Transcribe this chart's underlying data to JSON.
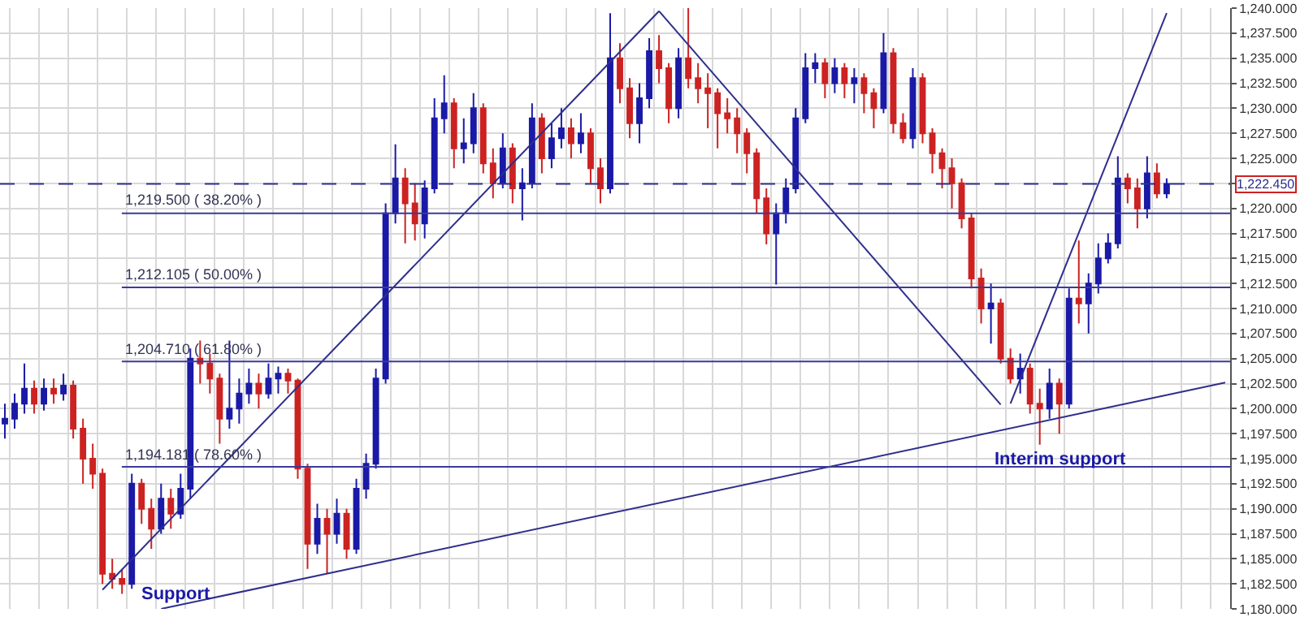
{
  "chart_data": {
    "type": "candlestick",
    "categories": [
      null,
      null,
      null,
      null,
      null,
      null,
      null,
      null,
      null,
      null,
      null,
      null,
      null,
      null,
      null,
      null,
      null,
      null,
      null,
      null,
      null,
      null,
      null,
      null,
      null,
      null,
      null,
      null,
      null,
      null,
      null,
      null,
      null,
      null,
      null,
      null,
      null,
      null,
      null,
      null,
      null,
      null,
      null,
      null,
      null,
      null,
      null,
      null,
      null,
      null,
      null,
      null,
      null,
      null,
      null,
      null,
      null,
      null,
      null,
      null,
      null,
      null,
      null,
      null,
      null,
      null,
      null,
      null,
      null,
      null,
      null,
      null,
      null,
      null,
      null,
      null,
      null,
      null,
      null,
      null,
      null,
      null,
      null,
      null,
      null,
      null,
      null,
      null,
      null,
      null,
      null,
      null,
      null,
      null,
      null,
      null,
      null,
      null,
      null,
      null,
      null,
      null,
      null,
      null,
      null,
      null,
      null,
      null,
      null,
      null,
      null,
      null,
      null,
      null,
      null,
      null,
      null,
      null,
      null,
      null,
      null,
      null,
      null,
      null,
      null,
      null
    ],
    "ohlc": [
      [
        1198.5,
        1200.5,
        1197.0,
        1199.0
      ],
      [
        1199.0,
        1201.5,
        1198.0,
        1200.5
      ],
      [
        1200.5,
        1204.5,
        1199.5,
        1202.0
      ],
      [
        1202.0,
        1202.8,
        1199.5,
        1200.5
      ],
      [
        1200.5,
        1203.0,
        1199.8,
        1202.0
      ],
      [
        1202.0,
        1203.0,
        1200.5,
        1201.5
      ],
      [
        1201.5,
        1203.5,
        1200.8,
        1202.3
      ],
      [
        1202.3,
        1202.8,
        1197.0,
        1198.0
      ],
      [
        1198.0,
        1199.0,
        1192.5,
        1195.0
      ],
      [
        1195.0,
        1196.5,
        1192.0,
        1193.5
      ],
      [
        1193.5,
        1194.0,
        1182.5,
        1183.5
      ],
      [
        1183.5,
        1185.0,
        1182.0,
        1183.0
      ],
      [
        1183.0,
        1184.0,
        1181.5,
        1182.5
      ],
      [
        1182.5,
        1193.5,
        1182.0,
        1192.5
      ],
      [
        1192.5,
        1193.0,
        1188.5,
        1190.0
      ],
      [
        1190.0,
        1191.0,
        1186.0,
        1188.0
      ],
      [
        1188.0,
        1192.5,
        1187.5,
        1191.0
      ],
      [
        1191.0,
        1192.0,
        1188.0,
        1189.5
      ],
      [
        1189.5,
        1193.5,
        1189.0,
        1192.0
      ],
      [
        1192.0,
        1206.0,
        1191.0,
        1205.0
      ],
      [
        1205.0,
        1206.8,
        1202.5,
        1204.5
      ],
      [
        1204.5,
        1205.5,
        1201.5,
        1203.0
      ],
      [
        1203.0,
        1203.5,
        1196.5,
        1199.0
      ],
      [
        1199.0,
        1206.8,
        1198.0,
        1200.0
      ],
      [
        1200.0,
        1203.0,
        1198.5,
        1201.5
      ],
      [
        1201.5,
        1204.0,
        1200.5,
        1202.5
      ],
      [
        1202.5,
        1203.5,
        1200.0,
        1201.5
      ],
      [
        1201.5,
        1204.5,
        1201.0,
        1203.0
      ],
      [
        1203.0,
        1204.2,
        1201.5,
        1203.5
      ],
      [
        1203.5,
        1204.0,
        1201.5,
        1202.8
      ],
      [
        1202.8,
        1203.0,
        1193.0,
        1194.0
      ],
      [
        1194.0,
        1194.5,
        1184.0,
        1186.5
      ],
      [
        1186.5,
        1190.5,
        1185.5,
        1189.0
      ],
      [
        1189.0,
        1190.0,
        1183.5,
        1187.5
      ],
      [
        1187.5,
        1191.0,
        1186.5,
        1189.5
      ],
      [
        1189.5,
        1190.0,
        1185.0,
        1186.0
      ],
      [
        1186.0,
        1193.0,
        1185.5,
        1192.0
      ],
      [
        1192.0,
        1195.5,
        1191.0,
        1194.5
      ],
      [
        1194.5,
        1204.0,
        1194.0,
        1203.0
      ],
      [
        1203.0,
        1220.5,
        1202.5,
        1219.5
      ],
      [
        1219.5,
        1226.4,
        1218.5,
        1223.0
      ],
      [
        1223.0,
        1224.0,
        1216.5,
        1220.5
      ],
      [
        1220.5,
        1222.5,
        1216.8,
        1218.5
      ],
      [
        1218.5,
        1222.8,
        1217.0,
        1222.0
      ],
      [
        1222.0,
        1231.0,
        1221.5,
        1229.0
      ],
      [
        1229.0,
        1233.3,
        1227.5,
        1230.5
      ],
      [
        1230.5,
        1231.0,
        1224.0,
        1226.0
      ],
      [
        1226.0,
        1229.0,
        1224.5,
        1226.5
      ],
      [
        1226.5,
        1231.5,
        1225.5,
        1230.0
      ],
      [
        1230.0,
        1230.5,
        1223.5,
        1224.5
      ],
      [
        1224.5,
        1226.0,
        1221.0,
        1222.5
      ],
      [
        1222.5,
        1227.5,
        1222.0,
        1226.0
      ],
      [
        1226.0,
        1226.5,
        1220.5,
        1222.0
      ],
      [
        1222.0,
        1224.0,
        1218.8,
        1222.5
      ],
      [
        1222.5,
        1230.5,
        1222.0,
        1229.0
      ],
      [
        1229.0,
        1229.5,
        1223.5,
        1225.0
      ],
      [
        1225.0,
        1228.5,
        1224.0,
        1227.0
      ],
      [
        1227.0,
        1230.0,
        1226.0,
        1228.0
      ],
      [
        1228.0,
        1229.0,
        1225.0,
        1226.5
      ],
      [
        1226.5,
        1229.5,
        1225.5,
        1227.5
      ],
      [
        1227.5,
        1228.0,
        1222.5,
        1224.0
      ],
      [
        1224.0,
        1225.0,
        1220.5,
        1222.0
      ],
      [
        1222.0,
        1239.5,
        1221.5,
        1235.0
      ],
      [
        1235.0,
        1236.5,
        1230.5,
        1232.0
      ],
      [
        1232.0,
        1233.0,
        1227.0,
        1228.5
      ],
      [
        1228.5,
        1232.5,
        1226.5,
        1231.0
      ],
      [
        1231.0,
        1237.0,
        1230.0,
        1235.7
      ],
      [
        1235.7,
        1237.3,
        1232.5,
        1234.0
      ],
      [
        1234.0,
        1234.5,
        1228.5,
        1230.0
      ],
      [
        1230.0,
        1236.0,
        1229.0,
        1235.0
      ],
      [
        1235.0,
        1240.0,
        1232.0,
        1233.0
      ],
      [
        1233.0,
        1234.5,
        1230.5,
        1232.0
      ],
      [
        1232.0,
        1233.5,
        1228.0,
        1231.5
      ],
      [
        1231.5,
        1232.0,
        1226.0,
        1229.5
      ],
      [
        1229.5,
        1231.0,
        1227.5,
        1229.0
      ],
      [
        1229.0,
        1230.0,
        1225.5,
        1227.5
      ],
      [
        1227.5,
        1228.0,
        1223.5,
        1225.5
      ],
      [
        1225.5,
        1226.0,
        1219.5,
        1221.0
      ],
      [
        1221.0,
        1222.0,
        1216.4,
        1217.5
      ],
      [
        1217.5,
        1220.5,
        1212.4,
        1219.5
      ],
      [
        1219.5,
        1223.0,
        1218.5,
        1222.0
      ],
      [
        1222.0,
        1230.0,
        1221.5,
        1229.0
      ],
      [
        1229.0,
        1235.5,
        1228.5,
        1234.0
      ],
      [
        1234.0,
        1235.5,
        1232.5,
        1234.5
      ],
      [
        1234.5,
        1235.0,
        1231.0,
        1232.5
      ],
      [
        1232.5,
        1235.0,
        1231.5,
        1234.0
      ],
      [
        1234.0,
        1234.5,
        1231.0,
        1232.5
      ],
      [
        1232.5,
        1234.0,
        1230.5,
        1233.0
      ],
      [
        1233.0,
        1233.5,
        1229.5,
        1231.5
      ],
      [
        1231.5,
        1232.0,
        1228.0,
        1230.0
      ],
      [
        1230.0,
        1237.5,
        1229.5,
        1235.5
      ],
      [
        1235.5,
        1236.0,
        1227.5,
        1228.5
      ],
      [
        1228.5,
        1229.5,
        1226.5,
        1227.0
      ],
      [
        1227.0,
        1234.0,
        1226.0,
        1233.0
      ],
      [
        1233.0,
        1233.5,
        1226.5,
        1227.5
      ],
      [
        1227.5,
        1228.0,
        1223.5,
        1225.5
      ],
      [
        1225.5,
        1226.0,
        1222.0,
        1224.0
      ],
      [
        1224.0,
        1225.0,
        1220.0,
        1222.5
      ],
      [
        1222.5,
        1223.0,
        1218.0,
        1219.0
      ],
      [
        1219.0,
        1219.5,
        1212.0,
        1213.0
      ],
      [
        1213.0,
        1214.0,
        1208.5,
        1210.0
      ],
      [
        1210.0,
        1212.5,
        1206.5,
        1210.5
      ],
      [
        1210.5,
        1211.0,
        1204.5,
        1205.0
      ],
      [
        1205.0,
        1206.0,
        1202.5,
        1203.0
      ],
      [
        1203.0,
        1205.5,
        1201.5,
        1204.0
      ],
      [
        1204.0,
        1204.5,
        1199.5,
        1200.5
      ],
      [
        1200.5,
        1202.0,
        1196.4,
        1200.0
      ],
      [
        1200.0,
        1204.0,
        1199.0,
        1202.5
      ],
      [
        1202.5,
        1203.0,
        1197.5,
        1200.5
      ],
      [
        1200.5,
        1212.0,
        1200.0,
        1211.0
      ],
      [
        1211.0,
        1216.8,
        1208.5,
        1210.5
      ],
      [
        1210.5,
        1213.5,
        1207.5,
        1212.5
      ],
      [
        1212.5,
        1216.5,
        1211.5,
        1215.0
      ],
      [
        1215.0,
        1217.5,
        1214.5,
        1216.5
      ],
      [
        1216.5,
        1225.2,
        1216.0,
        1223.0
      ],
      [
        1223.0,
        1223.5,
        1220.5,
        1222.0
      ],
      [
        1222.0,
        1223.0,
        1218.0,
        1220.0
      ],
      [
        1220.0,
        1225.2,
        1219.0,
        1223.5
      ],
      [
        1223.5,
        1224.5,
        1221.0,
        1221.5
      ],
      [
        1221.5,
        1223.0,
        1221.0,
        1222.45
      ],
      null,
      null,
      null,
      null,
      null,
      null
    ],
    "colors": [
      "#1a1aa6",
      "#1a1aa6",
      "#1a1aa6",
      "#cc2222",
      "#1a1aa6",
      "#cc2222",
      "#1a1aa6",
      "#cc2222",
      "#cc2222",
      "#cc2222",
      "#cc2222",
      "#cc2222",
      "#cc2222",
      "#1a1aa6",
      "#cc2222",
      "#cc2222",
      "#1a1aa6",
      "#cc2222",
      "#1a1aa6",
      "#1a1aa6",
      "#cc2222",
      "#cc2222",
      "#cc2222",
      "#1a1aa6",
      "#1a1aa6",
      "#1a1aa6",
      "#cc2222",
      "#1a1aa6",
      "#1a1aa6",
      "#cc2222",
      "#cc2222",
      "#cc2222",
      "#1a1aa6",
      "#cc2222",
      "#1a1aa6",
      "#cc2222",
      "#1a1aa6",
      "#1a1aa6",
      "#1a1aa6",
      "#1a1aa6",
      "#1a1aa6",
      "#cc2222",
      "#cc2222",
      "#1a1aa6",
      "#1a1aa6",
      "#1a1aa6",
      "#cc2222",
      "#1a1aa6",
      "#1a1aa6",
      "#cc2222",
      "#cc2222",
      "#1a1aa6",
      "#cc2222",
      "#1a1aa6",
      "#1a1aa6",
      "#cc2222",
      "#1a1aa6",
      "#1a1aa6",
      "#cc2222",
      "#1a1aa6",
      "#cc2222",
      "#cc2222",
      "#1a1aa6",
      "#cc2222",
      "#cc2222",
      "#1a1aa6",
      "#1a1aa6",
      "#cc2222",
      "#cc2222",
      "#1a1aa6",
      "#cc2222",
      "#cc2222",
      "#cc2222",
      "#cc2222",
      "#cc2222",
      "#cc2222",
      "#cc2222",
      "#cc2222",
      "#cc2222",
      "#1a1aa6",
      "#1a1aa6",
      "#1a1aa6",
      "#1a1aa6",
      "#1a1aa6",
      "#cc2222",
      "#1a1aa6",
      "#cc2222",
      "#1a1aa6",
      "#cc2222",
      "#cc2222",
      "#1a1aa6",
      "#cc2222",
      "#cc2222",
      "#1a1aa6",
      "#cc2222",
      "#cc2222",
      "#cc2222",
      "#cc2222",
      "#cc2222",
      "#cc2222",
      "#cc2222",
      "#1a1aa6",
      "#cc2222",
      "#cc2222",
      "#1a1aa6",
      "#cc2222",
      "#cc2222",
      "#1a1aa6",
      "#cc2222",
      "#1a1aa6",
      "#cc2222",
      "#1a1aa6",
      "#1a1aa6",
      "#1a1aa6",
      "#1a1aa6",
      "#cc2222",
      "#cc2222",
      "#1a1aa6",
      "#cc2222",
      "#1a1aa6",
      null,
      null,
      null,
      null,
      null,
      null
    ],
    "series": [
      {
        "type": "line",
        "values": [
          null,
          null,
          null,
          null,
          null,
          null,
          null,
          null,
          null,
          null,
          null,
          null,
          null,
          null,
          null,
          null,
          1180.0,
          null,
          null,
          null,
          null,
          null,
          null,
          null,
          null,
          null,
          null,
          null,
          null,
          null,
          null,
          null,
          null,
          null,
          null,
          null,
          null,
          null,
          null,
          null,
          null,
          null,
          null,
          null,
          null,
          null,
          null,
          null,
          null,
          null,
          null,
          null,
          null,
          null,
          null,
          null,
          null,
          null,
          null,
          null,
          null,
          null,
          null,
          null,
          null,
          null,
          null,
          null,
          null,
          null,
          null,
          null,
          null,
          null,
          null,
          null,
          null,
          null,
          null,
          null,
          null,
          null,
          null,
          null,
          null,
          null,
          null,
          null,
          null,
          null,
          null,
          null,
          null,
          null,
          null,
          null,
          null,
          null,
          null,
          null,
          null,
          null,
          null,
          null,
          null,
          null,
          null,
          null,
          null,
          null,
          null,
          null,
          null,
          null,
          null,
          null,
          null,
          null,
          null,
          null,
          null,
          null,
          null,
          null,
          null,
          1202.6
        ],
        "color": "#2e2e8c"
      },
      {
        "type": "line",
        "values": [
          null,
          null,
          null,
          null,
          null,
          null,
          null,
          null,
          null,
          null,
          1181.9,
          null,
          null,
          null,
          null,
          null,
          null,
          null,
          null,
          null,
          null,
          null,
          null,
          null,
          null,
          null,
          null,
          null,
          null,
          null,
          null,
          null,
          null,
          null,
          null,
          null,
          null,
          null,
          null,
          null,
          null,
          null,
          null,
          null,
          null,
          null,
          null,
          null,
          null,
          null,
          null,
          null,
          null,
          null,
          null,
          null,
          null,
          null,
          null,
          null,
          null,
          null,
          null,
          null,
          null,
          null,
          null,
          1239.7,
          null,
          null,
          null,
          null,
          null,
          null,
          null,
          null,
          null,
          null,
          null,
          null,
          null,
          null,
          null,
          null,
          null,
          null,
          null,
          null,
          null,
          null,
          null,
          null,
          null,
          null,
          null,
          null,
          null,
          null,
          null,
          null,
          null,
          null,
          null,
          null,
          null,
          null,
          null,
          null,
          null,
          null,
          null,
          null,
          null,
          null,
          null,
          null,
          null,
          null,
          null,
          null,
          null,
          null,
          null,
          null,
          null,
          null
        ],
        "color": "#2e2e8c"
      },
      {
        "type": "line",
        "values": [
          null,
          null,
          null,
          null,
          null,
          null,
          null,
          null,
          null,
          null,
          null,
          null,
          null,
          null,
          null,
          null,
          null,
          null,
          null,
          null,
          null,
          null,
          null,
          null,
          null,
          null,
          null,
          null,
          null,
          null,
          null,
          null,
          null,
          null,
          null,
          null,
          null,
          null,
          null,
          null,
          null,
          null,
          null,
          null,
          null,
          null,
          null,
          null,
          null,
          null,
          null,
          null,
          null,
          null,
          null,
          null,
          null,
          null,
          null,
          null,
          null,
          null,
          null,
          null,
          null,
          null,
          null,
          1239.7,
          null,
          null,
          null,
          null,
          null,
          null,
          null,
          null,
          null,
          null,
          null,
          null,
          null,
          null,
          null,
          null,
          null,
          null,
          null,
          null,
          null,
          null,
          null,
          null,
          null,
          null,
          null,
          null,
          null,
          null,
          null,
          null,
          null,
          null,
          1200.4,
          null,
          null,
          null,
          null,
          null,
          null,
          null,
          null,
          null,
          null,
          null,
          null,
          null,
          null,
          null,
          null,
          null,
          null,
          null,
          null,
          null,
          null,
          null
        ],
        "color": "#2e2e8c"
      },
      {
        "type": "line",
        "values": [
          null,
          null,
          null,
          null,
          null,
          null,
          null,
          null,
          null,
          null,
          null,
          null,
          null,
          null,
          null,
          null,
          null,
          null,
          null,
          null,
          null,
          null,
          null,
          null,
          null,
          null,
          null,
          null,
          null,
          null,
          null,
          null,
          null,
          null,
          null,
          null,
          null,
          null,
          null,
          null,
          null,
          null,
          null,
          null,
          null,
          null,
          null,
          null,
          null,
          null,
          null,
          null,
          null,
          null,
          null,
          null,
          null,
          null,
          null,
          null,
          null,
          null,
          null,
          null,
          null,
          null,
          null,
          null,
          null,
          null,
          null,
          null,
          null,
          null,
          null,
          null,
          null,
          null,
          null,
          null,
          null,
          null,
          null,
          null,
          null,
          null,
          null,
          null,
          null,
          null,
          null,
          null,
          null,
          null,
          null,
          null,
          null,
          null,
          null,
          null,
          null,
          null,
          null,
          1200.5,
          null,
          null,
          null,
          null,
          null,
          null,
          null,
          null,
          null,
          null,
          null,
          null,
          null,
          null,
          null,
          1239.5,
          null,
          null,
          null,
          null,
          null,
          null
        ],
        "color": "#2e2e8c"
      }
    ],
    "ylim": [
      1180,
      1240
    ],
    "yticks": [
      {
        "value": 1180,
        "label": "1,180.000"
      },
      {
        "value": 1182.5,
        "label": "1,182.500"
      },
      {
        "value": 1185,
        "label": "1,185.000"
      },
      {
        "value": 1187.5,
        "label": "1,187.500"
      },
      {
        "value": 1190,
        "label": "1,190.000"
      },
      {
        "value": 1192.5,
        "label": "1,192.500"
      },
      {
        "value": 1195,
        "label": "1,195.000"
      },
      {
        "value": 1197.5,
        "label": "1,197.500"
      },
      {
        "value": 1200,
        "label": "1,200.000"
      },
      {
        "value": 1202.5,
        "label": "1,202.500"
      },
      {
        "value": 1205,
        "label": "1,205.000"
      },
      {
        "value": 1207.5,
        "label": "1,207.500"
      },
      {
        "value": 1210,
        "label": "1,210.000"
      },
      {
        "value": 1212.5,
        "label": "1,212.500"
      },
      {
        "value": 1215,
        "label": "1,215.000"
      },
      {
        "value": 1217.5,
        "label": "1,217.500"
      },
      {
        "value": 1220,
        "label": "1,220.000"
      },
      {
        "value": 1222.5,
        "label": null
      },
      {
        "value": 1225,
        "label": "1,225.000"
      },
      {
        "value": 1227.5,
        "label": "1,227.500"
      },
      {
        "value": 1230,
        "label": "1,230.000"
      },
      {
        "value": 1232.5,
        "label": "1,232.500"
      },
      {
        "value": 1235,
        "label": "1,235.000"
      },
      {
        "value": 1237.5,
        "label": "1,237.500"
      },
      {
        "value": 1240,
        "label": "1,240.000"
      }
    ],
    "ref_lines": [
      {
        "axis": "y",
        "value": 1222.45,
        "label": "1,222.450",
        "color": "#2e2e8c",
        "line_style": "dashed"
      },
      {
        "axis": "y",
        "value": 1219.5,
        "label": "1,219.500 ( 38.20% )",
        "color": "#3a3a9a"
      },
      {
        "axis": "y",
        "value": 1212.105,
        "label": "1,212.105 ( 50.00% )",
        "color": "#3a3a9a"
      },
      {
        "axis": "y",
        "value": 1204.71,
        "label": "1,204.710 ( 61.80% )",
        "color": "#3a3a9a"
      },
      {
        "axis": "y",
        "value": 1194.181,
        "label": "1,194.181 ( 78.60% )",
        "color": "#3a3a9a"
      }
    ],
    "annotations": [
      "Support",
      "Interim support"
    ],
    "grid": true,
    "tick_labels": "y"
  }
}
